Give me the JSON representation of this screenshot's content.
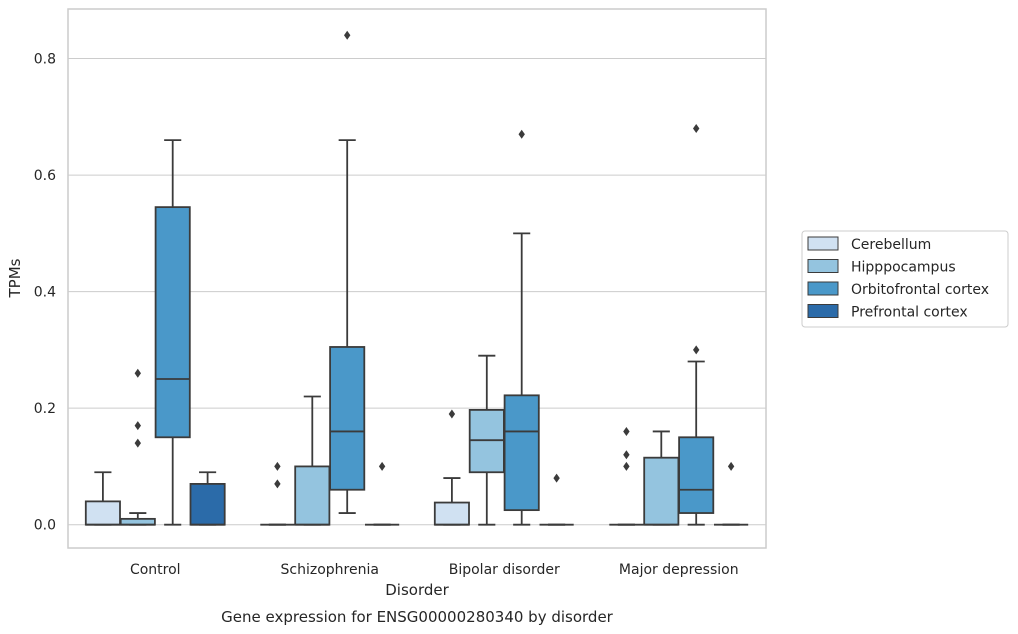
{
  "chart_data": {
    "type": "box",
    "xlabel": "Disorder",
    "ylabel": "TPMs",
    "caption": "Gene expression for ENSG00000280340 by disorder",
    "ylim": [
      -0.04,
      0.885
    ],
    "yticks": [
      0.0,
      0.2,
      0.4,
      0.6,
      0.8
    ],
    "ytick_labels": [
      "0.0",
      "0.2",
      "0.4",
      "0.6",
      "0.8"
    ],
    "grid": "horizontal",
    "legend_position": "right",
    "categories": [
      "Control",
      "Schizophrenia",
      "Bipolar disorder",
      "Major depression"
    ],
    "series": [
      {
        "name": "Cerebellum",
        "color": "#d0e1f2",
        "boxes": [
          {
            "q1": 0.0,
            "median": 0.0,
            "q3": 0.04,
            "whisker_low": 0.0,
            "whisker_high": 0.09,
            "outliers": []
          },
          {
            "q1": 0.0,
            "median": 0.0,
            "q3": 0.0,
            "whisker_low": 0.0,
            "whisker_high": 0.0,
            "outliers": [
              0.07,
              0.1
            ]
          },
          {
            "q1": 0.0,
            "median": 0.0,
            "q3": 0.038,
            "whisker_low": 0.0,
            "whisker_high": 0.08,
            "outliers": [
              0.19
            ]
          },
          {
            "q1": 0.0,
            "median": 0.0,
            "q3": 0.0,
            "whisker_low": 0.0,
            "whisker_high": 0.0,
            "outliers": [
              0.1,
              0.12,
              0.16
            ]
          }
        ]
      },
      {
        "name": "Hipppocampus",
        "color": "#94c4df",
        "boxes": [
          {
            "q1": 0.0,
            "median": 0.0,
            "q3": 0.01,
            "whisker_low": 0.0,
            "whisker_high": 0.02,
            "outliers": [
              0.14,
              0.17,
              0.26
            ]
          },
          {
            "q1": 0.0,
            "median": 0.0,
            "q3": 0.1,
            "whisker_low": 0.0,
            "whisker_high": 0.22,
            "outliers": []
          },
          {
            "q1": 0.09,
            "median": 0.145,
            "q3": 0.197,
            "whisker_low": 0.0,
            "whisker_high": 0.29,
            "outliers": []
          },
          {
            "q1": 0.0,
            "median": 0.0,
            "q3": 0.115,
            "whisker_low": 0.0,
            "whisker_high": 0.16,
            "outliers": []
          }
        ]
      },
      {
        "name": "Orbitofrontal cortex",
        "color": "#4a98c9",
        "boxes": [
          {
            "q1": 0.15,
            "median": 0.25,
            "q3": 0.545,
            "whisker_low": 0.0,
            "whisker_high": 0.66,
            "outliers": []
          },
          {
            "q1": 0.06,
            "median": 0.16,
            "q3": 0.305,
            "whisker_low": 0.02,
            "whisker_high": 0.66,
            "outliers": [
              0.84
            ]
          },
          {
            "q1": 0.025,
            "median": 0.16,
            "q3": 0.222,
            "whisker_low": 0.0,
            "whisker_high": 0.5,
            "outliers": [
              0.67
            ]
          },
          {
            "q1": 0.02,
            "median": 0.06,
            "q3": 0.15,
            "whisker_low": 0.0,
            "whisker_high": 0.28,
            "outliers": [
              0.3,
              0.68
            ]
          }
        ]
      },
      {
        "name": "Prefrontal cortex",
        "color": "#2b6ba9",
        "boxes": [
          {
            "q1": 0.0,
            "median": 0.0,
            "q3": 0.07,
            "whisker_low": 0.0,
            "whisker_high": 0.09,
            "outliers": []
          },
          {
            "q1": 0.0,
            "median": 0.0,
            "q3": 0.0,
            "whisker_low": 0.0,
            "whisker_high": 0.0,
            "outliers": [
              0.1
            ]
          },
          {
            "q1": 0.0,
            "median": 0.0,
            "q3": 0.0,
            "whisker_low": 0.0,
            "whisker_high": 0.0,
            "outliers": [
              0.08
            ]
          },
          {
            "q1": 0.0,
            "median": 0.0,
            "q3": 0.0,
            "whisker_low": 0.0,
            "whisker_high": 0.0,
            "outliers": [
              0.1
            ]
          }
        ]
      }
    ]
  }
}
